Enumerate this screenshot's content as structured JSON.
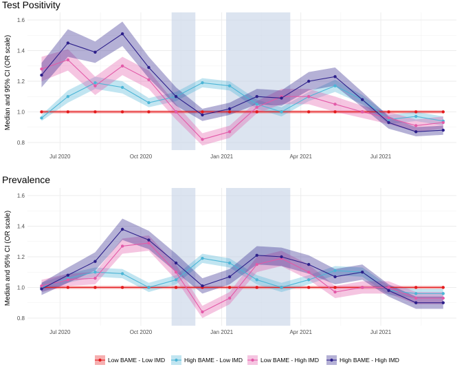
{
  "colors": {
    "low_bame_low_imd": "#e41a1c",
    "high_bame_low_imd": "#4cb5d6",
    "low_bame_high_imd": "#e35aa8",
    "high_bame_high_imd": "#2c1f8a",
    "lockdown_shade": "#c9d5e8"
  },
  "y_axis_label": "Median and 95% CI (OR scale)",
  "legend": {
    "items": [
      {
        "key": "low_bame_low_imd",
        "label": "Low BAME - Low IMD"
      },
      {
        "key": "high_bame_low_imd",
        "label": "High BAME - Low IMD"
      },
      {
        "key": "low_bame_high_imd",
        "label": "Low BAME - High IMD"
      },
      {
        "key": "high_bame_high_imd",
        "label": "High BAME - High IMD"
      }
    ],
    "position": "bottom"
  },
  "chart_data": [
    {
      "type": "line",
      "title": "Test Positivity",
      "xlabel": "",
      "ylabel": "Median and 95% CI (OR scale)",
      "ylim": [
        0.75,
        1.65
      ],
      "yticks": [
        0.8,
        1.0,
        1.2,
        1.4,
        1.6
      ],
      "ytick_labels": [
        "0.8",
        "1.0",
        "1.2",
        "1.4",
        "1.6"
      ],
      "xticks": [
        "Jul 2020",
        "Oct 2020",
        "Jan 2021",
        "Apr 2021",
        "Jul 2021"
      ],
      "x": [
        "2020-06-10",
        "2020-07-10",
        "2020-08-10",
        "2020-09-10",
        "2020-10-10",
        "2020-11-10",
        "2020-12-10",
        "2021-01-10",
        "2021-02-10",
        "2021-03-10",
        "2021-04-10",
        "2021-05-10",
        "2021-06-10",
        "2021-07-10",
        "2021-08-10",
        "2021-09-10"
      ],
      "shaded_periods": [
        [
          "2020-11-05",
          "2020-12-02"
        ],
        [
          "2021-01-06",
          "2021-03-20"
        ]
      ],
      "grid": true,
      "series": [
        {
          "key": "low_bame_low_imd",
          "name": "Low BAME - Low IMD",
          "values": [
            1.0,
            1.0,
            1.0,
            1.0,
            1.0,
            1.0,
            1.0,
            1.0,
            1.0,
            1.0,
            1.0,
            1.0,
            1.0,
            1.0,
            1.0,
            1.0
          ],
          "lower": [
            0.99,
            0.99,
            0.99,
            0.99,
            0.99,
            0.99,
            0.99,
            0.99,
            0.99,
            0.99,
            0.99,
            0.99,
            0.99,
            0.99,
            0.99,
            0.99
          ],
          "upper": [
            1.01,
            1.01,
            1.01,
            1.01,
            1.01,
            1.01,
            1.01,
            1.01,
            1.01,
            1.01,
            1.01,
            1.01,
            1.01,
            1.01,
            1.01,
            1.01
          ]
        },
        {
          "key": "high_bame_low_imd",
          "name": "High BAME - Low IMD",
          "values": [
            0.96,
            1.1,
            1.19,
            1.16,
            1.06,
            1.1,
            1.19,
            1.17,
            1.05,
            1.0,
            1.1,
            1.17,
            1.08,
            0.95,
            0.97,
            0.94
          ],
          "lower": [
            0.94,
            1.06,
            1.15,
            1.12,
            1.03,
            1.07,
            1.16,
            1.14,
            1.02,
            0.97,
            1.07,
            1.13,
            1.05,
            0.92,
            0.94,
            0.91
          ],
          "upper": [
            0.98,
            1.14,
            1.23,
            1.2,
            1.09,
            1.13,
            1.22,
            1.2,
            1.08,
            1.03,
            1.13,
            1.21,
            1.11,
            0.98,
            1.0,
            0.97
          ]
        },
        {
          "key": "low_bame_high_imd",
          "name": "Low BAME - High IMD",
          "values": [
            1.28,
            1.34,
            1.17,
            1.3,
            1.21,
            1.0,
            0.82,
            0.87,
            1.03,
            1.1,
            1.1,
            1.05,
            1.0,
            0.96,
            0.91,
            0.93
          ],
          "lower": [
            1.2,
            1.27,
            1.11,
            1.24,
            1.15,
            0.95,
            0.78,
            0.83,
            0.99,
            1.05,
            1.05,
            1.0,
            0.96,
            0.92,
            0.87,
            0.89
          ],
          "upper": [
            1.36,
            1.41,
            1.23,
            1.36,
            1.27,
            1.05,
            0.86,
            0.91,
            1.07,
            1.15,
            1.15,
            1.1,
            1.04,
            1.0,
            0.95,
            0.97
          ]
        },
        {
          "key": "high_bame_high_imd",
          "name": "High BAME - High IMD",
          "values": [
            1.24,
            1.45,
            1.39,
            1.51,
            1.29,
            1.1,
            0.98,
            1.02,
            1.1,
            1.09,
            1.2,
            1.23,
            1.08,
            0.93,
            0.87,
            0.88
          ],
          "lower": [
            1.16,
            1.36,
            1.32,
            1.43,
            1.22,
            1.04,
            0.94,
            0.98,
            1.05,
            1.04,
            1.14,
            1.17,
            1.03,
            0.89,
            0.84,
            0.85
          ],
          "upper": [
            1.32,
            1.54,
            1.46,
            1.59,
            1.36,
            1.16,
            1.02,
            1.06,
            1.15,
            1.14,
            1.26,
            1.29,
            1.13,
            0.97,
            0.9,
            0.91
          ]
        }
      ]
    },
    {
      "type": "line",
      "title": "Prevalence",
      "xlabel": "",
      "ylabel": "Median and 95% CI (OR scale)",
      "ylim": [
        0.75,
        1.65
      ],
      "yticks": [
        0.8,
        1.0,
        1.2,
        1.4,
        1.6
      ],
      "ytick_labels": [
        "0.8",
        "1.0",
        "1.2",
        "1.4",
        "1.6"
      ],
      "xticks": [
        "Jul 2020",
        "Oct 2020",
        "Jan 2021",
        "Apr 2021",
        "Jul 2021"
      ],
      "x": [
        "2020-06-10",
        "2020-07-10",
        "2020-08-10",
        "2020-09-10",
        "2020-10-10",
        "2020-11-10",
        "2020-12-10",
        "2021-01-10",
        "2021-02-10",
        "2021-03-10",
        "2021-04-10",
        "2021-05-10",
        "2021-06-10",
        "2021-07-10",
        "2021-08-10",
        "2021-09-10"
      ],
      "shaded_periods": [
        [
          "2020-11-05",
          "2020-12-02"
        ],
        [
          "2021-01-06",
          "2021-03-20"
        ]
      ],
      "grid": true,
      "series": [
        {
          "key": "low_bame_low_imd",
          "name": "Low BAME - Low IMD",
          "values": [
            1.0,
            1.0,
            1.0,
            1.0,
            1.0,
            1.0,
            1.0,
            1.0,
            1.0,
            1.0,
            1.0,
            1.0,
            1.0,
            1.0,
            1.0,
            1.0
          ],
          "lower": [
            0.99,
            0.99,
            0.99,
            0.99,
            0.99,
            0.99,
            0.99,
            0.99,
            0.99,
            0.99,
            0.99,
            0.99,
            0.99,
            0.99,
            0.99,
            0.99
          ],
          "upper": [
            1.01,
            1.01,
            1.01,
            1.01,
            1.01,
            1.01,
            1.01,
            1.01,
            1.01,
            1.01,
            1.01,
            1.01,
            1.01,
            1.01,
            1.01,
            1.01
          ]
        },
        {
          "key": "high_bame_low_imd",
          "name": "High BAME - Low IMD",
          "values": [
            1.0,
            1.06,
            1.1,
            1.09,
            1.0,
            1.05,
            1.19,
            1.16,
            1.05,
            1.0,
            1.05,
            1.11,
            1.1,
            0.98,
            0.96,
            0.96
          ],
          "lower": [
            0.97,
            1.03,
            1.07,
            1.06,
            0.97,
            1.02,
            1.16,
            1.13,
            1.02,
            0.97,
            1.02,
            1.08,
            1.07,
            0.95,
            0.93,
            0.93
          ],
          "upper": [
            1.03,
            1.09,
            1.13,
            1.12,
            1.03,
            1.08,
            1.22,
            1.19,
            1.08,
            1.03,
            1.08,
            1.14,
            1.13,
            1.01,
            0.99,
            0.99
          ]
        },
        {
          "key": "low_bame_high_imd",
          "name": "Low BAME - High IMD",
          "values": [
            1.01,
            1.05,
            1.06,
            1.27,
            1.29,
            1.1,
            0.84,
            0.93,
            1.15,
            1.19,
            1.1,
            0.97,
            1.0,
            1.0,
            0.93,
            0.93
          ],
          "lower": [
            0.97,
            1.01,
            1.02,
            1.22,
            1.24,
            1.05,
            0.8,
            0.89,
            1.1,
            1.14,
            1.05,
            0.93,
            0.96,
            0.96,
            0.89,
            0.89
          ],
          "upper": [
            1.05,
            1.09,
            1.1,
            1.32,
            1.34,
            1.15,
            0.88,
            0.97,
            1.2,
            1.24,
            1.15,
            1.01,
            1.04,
            1.04,
            0.97,
            0.97
          ]
        },
        {
          "key": "high_bame_high_imd",
          "name": "High BAME - High IMD",
          "values": [
            0.99,
            1.08,
            1.17,
            1.38,
            1.31,
            1.16,
            1.01,
            1.07,
            1.21,
            1.2,
            1.15,
            1.07,
            1.1,
            0.98,
            0.9,
            0.9
          ],
          "lower": [
            0.95,
            1.03,
            1.11,
            1.31,
            1.25,
            1.1,
            0.96,
            1.02,
            1.15,
            1.14,
            1.09,
            1.02,
            1.05,
            0.94,
            0.86,
            0.86
          ],
          "upper": [
            1.03,
            1.13,
            1.23,
            1.45,
            1.37,
            1.22,
            1.06,
            1.12,
            1.27,
            1.26,
            1.21,
            1.12,
            1.15,
            1.02,
            0.94,
            0.94
          ]
        }
      ]
    }
  ]
}
